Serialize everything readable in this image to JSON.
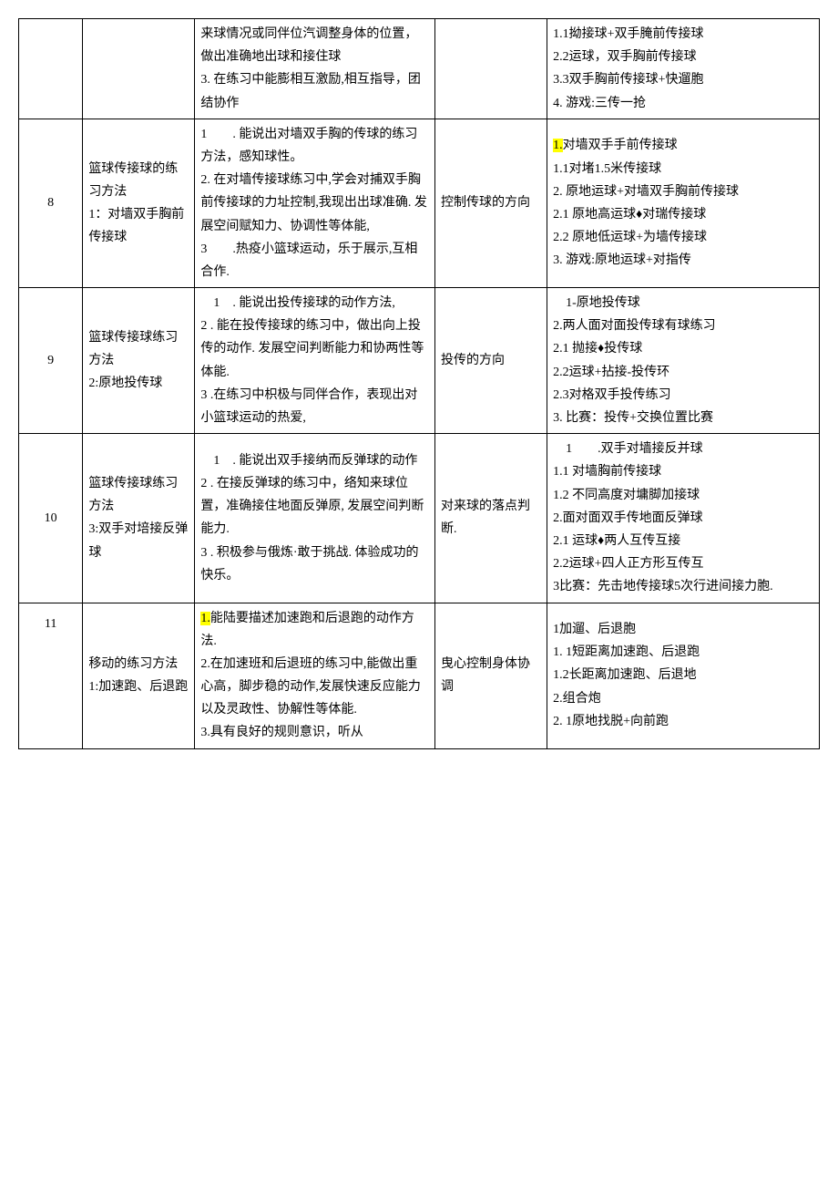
{
  "rows": [
    {
      "num": "",
      "title": "",
      "objectives": "来球情况或同伴位汽调整身体的位置，做出准确地出球和接住球\n3. 在练习中能膨相互激励,相互指导，团结协作",
      "key": "",
      "content": "1.1拗接球+双手腌前传接球\n2.2运球，双手胸前传接球\n3.3双手胸前传接球+快遛胞\n4. 游戏:三传一抢"
    },
    {
      "num": "8",
      "title": "篮球传接球的练习方法\n1：对墙双手胸前传接球",
      "objectives": "1  . 能说出对墙双手胸的传球的练习方法，感知球性。\n2. 在对墙传接球练习中,学会对捕双手胸前传接球的力址控制,我现出出球准确. 发展空间赋知力、协调性等体能,\n3  .热疫小篮球运动，乐于展示,互相合作.",
      "key": "控制传球的方向",
      "content_prefix_hl": "1.",
      "content_prefix_rest": "对墙双手手前传接球",
      "content_rest": "1.1对堵1.5米传接球\n2. 原地运球+对墙双手胸前传接球\n2.1   原地高运球♦对瑞传接球\n2.2   原地低运球+为墙传接球\n3. 游戏:原地运球+对指传"
    },
    {
      "num": "9",
      "title": "篮球传接球练习方法\n2:原地投传球",
      "objectives": " 1 . 能说出投传接球的动作方法,\n2 . 能在投传接球的练习中，做出向上投传的动作. 发展空间判断能力和协两性等体能.\n3 .在练习中枳极与同伴合作，表现出对小篮球运动的热爱,",
      "key": "投传的方向",
      "content": " 1-原地投传球\n2.两人面对面投传球有球练习\n2.1 抛接♦投传球\n2.2运球+拈接-投传环\n2.3对格双手投传练习\n3. 比赛：投传+交换位置比赛"
    },
    {
      "num": "10",
      "title": "篮球传接球练习方法\n3:双手对培接反弹球",
      "objectives": " 1 . 能说出双手接纳而反弹球的动作\n2 . 在接反弹球的练习中，络知来球位置，准确接住地面反弹原, 发展空间判断能力.\n3 . 积极参与俄炼·敢于挑战. 体验成功的快乐。",
      "key": "对来球的落点判断.",
      "content": " 1  .双手对墙接反并球\n1.1 对墙胸前传接球\n1.2 不同高度对墉脚加接球\n2.面对面双手传地面反弹球\n2.1  运球♦两人互传互接\n2.2运球+四人正方形互传互\n3比赛：先击地传接球5次行进间接力胞."
    },
    {
      "num": "11",
      "title": "移动的练习方法\n1:加速跑、后退跑",
      "obj_prefix_hl": "1.",
      "obj_prefix_rest": "能陆要描述加速跑和后退跑的动作方法.",
      "obj_rest": "2.在加速班和后退班的练习中,能做出重心高，脚步稳的动作,发展快速反应能力以及灵政性、协解性等体能.\n3.具有良好的规则意识，听从",
      "key": "曳心控制身体协调",
      "content": "1加遛、后退胞\n1. 1短距离加速跑、后退跑\n1.2长距离加速跑、后退地\n2.组合炮\n2. 1原地找脱+向前跑"
    }
  ]
}
